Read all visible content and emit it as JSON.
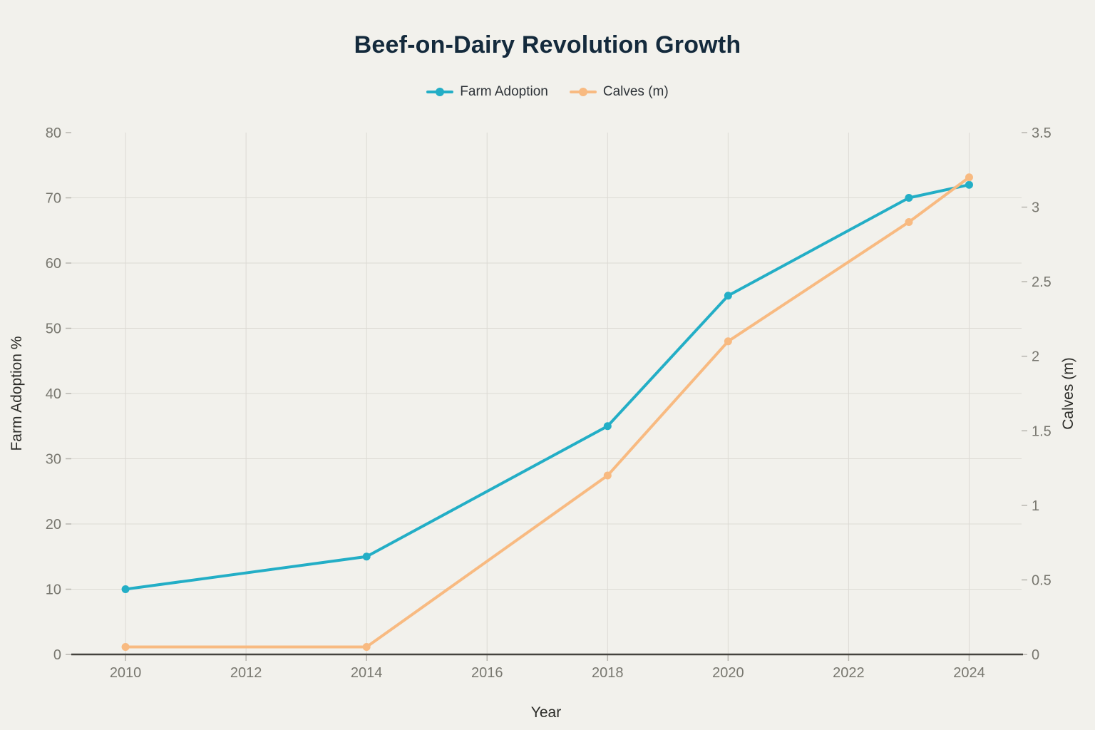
{
  "title": "Beef-on-Dairy Revolution Growth",
  "legend": {
    "items": [
      {
        "label": "Farm Adoption",
        "color": "#23aec6"
      },
      {
        "label": "Calves (m)",
        "color": "#f8ba81"
      }
    ]
  },
  "colors": {
    "background": "#f2f1ec",
    "grid": "#dcdad4",
    "axis_line": "#45433e",
    "tick_mark": "#b7b5ae",
    "tick_text": "#78776f",
    "axis_title_text": "#2b2b27",
    "title_text": "#142a3c",
    "farm_adoption": "#23aec6",
    "calves": "#f8ba81"
  },
  "chart_data": {
    "type": "line",
    "title": "Beef-on-Dairy Revolution Growth",
    "xlabel": "Year",
    "ylabel_left": "Farm Adoption %",
    "ylabel_right": "Calves (m)",
    "grid": true,
    "legend_position": "top-center",
    "x_ticks": [
      2010,
      2012,
      2014,
      2016,
      2018,
      2020,
      2022,
      2024
    ],
    "y_left_ticks": [
      0,
      10,
      20,
      30,
      40,
      50,
      60,
      70,
      80
    ],
    "y_right_ticks": [
      0,
      0.5,
      1,
      1.5,
      2,
      2.5,
      3,
      3.5
    ],
    "x_range": [
      2009.1,
      2024.87
    ],
    "y_left_range": [
      0,
      80
    ],
    "y_right_range": [
      0,
      3.5
    ],
    "x": [
      2010,
      2014,
      2018,
      2020,
      2023,
      2024
    ],
    "series": [
      {
        "name": "Farm Adoption",
        "axis": "left",
        "color": "#23aec6",
        "values": [
          10,
          15,
          35,
          55,
          70,
          72
        ]
      },
      {
        "name": "Calves (m)",
        "axis": "right",
        "color": "#f8ba81",
        "values": [
          0.05,
          0.05,
          1.2,
          2.1,
          2.9,
          3.2
        ]
      }
    ]
  }
}
